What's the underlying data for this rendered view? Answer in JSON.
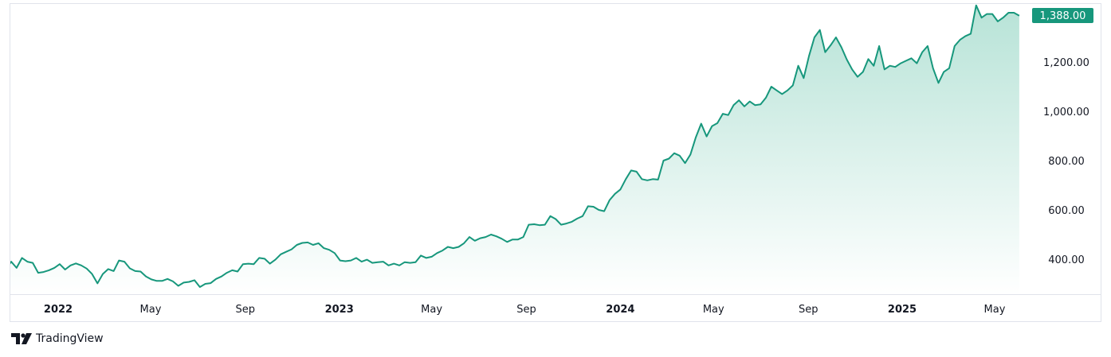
{
  "brand": {
    "name": "TradingView"
  },
  "colors": {
    "line": "#17977c",
    "area_top": "#b7e3d7",
    "area_bottom": "#ffffff",
    "badge": "#17977c",
    "border": "#e0e3eb"
  },
  "chart_data": {
    "type": "area",
    "title": "",
    "xlabel": "",
    "ylabel": "",
    "last_price_label": "1,388.00",
    "ylim": [
      290,
      1400
    ],
    "y_ticks": [
      {
        "value": 400,
        "label": "400.00"
      },
      {
        "value": 600,
        "label": "600.00"
      },
      {
        "value": 800,
        "label": "800.00"
      },
      {
        "value": 1000,
        "label": "1,000.00"
      },
      {
        "value": 1200,
        "label": "1,200.00"
      }
    ],
    "x_ticks": [
      {
        "date": "2022-01-01",
        "label": "2022",
        "bold": true
      },
      {
        "date": "2022-05-01",
        "label": "May",
        "bold": false
      },
      {
        "date": "2022-09-01",
        "label": "Sep",
        "bold": false
      },
      {
        "date": "2023-01-01",
        "label": "2023",
        "bold": true
      },
      {
        "date": "2023-05-01",
        "label": "May",
        "bold": false
      },
      {
        "date": "2023-09-01",
        "label": "Sep",
        "bold": false
      },
      {
        "date": "2024-01-01",
        "label": "2024",
        "bold": true
      },
      {
        "date": "2024-05-01",
        "label": "May",
        "bold": false
      },
      {
        "date": "2024-09-01",
        "label": "Sep",
        "bold": false
      },
      {
        "date": "2025-01-01",
        "label": "2025",
        "bold": true
      },
      {
        "date": "2025-05-01",
        "label": "May",
        "bold": false
      }
    ],
    "series": [
      {
        "x": [
          "2021-10-26",
          "2021-11-01",
          "2021-11-08",
          "2021-11-15",
          "2021-11-22",
          "2021-11-29",
          "2021-12-06",
          "2021-12-13",
          "2021-12-20",
          "2021-12-27",
          "2022-01-03",
          "2022-01-10",
          "2022-01-17",
          "2022-01-24",
          "2022-01-31",
          "2022-02-07",
          "2022-02-14",
          "2022-02-21",
          "2022-02-28",
          "2022-03-07",
          "2022-03-14",
          "2022-03-21",
          "2022-03-28",
          "2022-04-04",
          "2022-04-11",
          "2022-04-18",
          "2022-04-25",
          "2022-05-02",
          "2022-05-09",
          "2022-05-16",
          "2022-05-23",
          "2022-05-30",
          "2022-06-06",
          "2022-06-13",
          "2022-06-20",
          "2022-06-27",
          "2022-07-04",
          "2022-07-11",
          "2022-07-18",
          "2022-07-25",
          "2022-08-01",
          "2022-08-08",
          "2022-08-15",
          "2022-08-22",
          "2022-08-29",
          "2022-09-05",
          "2022-09-12",
          "2022-09-19",
          "2022-09-26",
          "2022-10-03",
          "2022-10-10",
          "2022-10-17",
          "2022-10-24",
          "2022-10-31",
          "2022-11-07",
          "2022-11-14",
          "2022-11-21",
          "2022-11-28",
          "2022-12-05",
          "2022-12-12",
          "2022-12-19",
          "2022-12-26",
          "2023-01-02",
          "2023-01-09",
          "2023-01-16",
          "2023-01-23",
          "2023-01-30",
          "2023-02-06",
          "2023-02-13",
          "2023-02-20",
          "2023-02-27",
          "2023-03-06",
          "2023-03-13",
          "2023-03-20",
          "2023-03-27",
          "2023-04-03",
          "2023-04-10",
          "2023-04-17",
          "2023-04-24",
          "2023-05-01",
          "2023-05-08",
          "2023-05-15",
          "2023-05-22",
          "2023-05-29",
          "2023-06-05",
          "2023-06-12",
          "2023-06-19",
          "2023-06-26",
          "2023-07-03",
          "2023-07-10",
          "2023-07-17",
          "2023-07-24",
          "2023-07-31",
          "2023-08-07",
          "2023-08-14",
          "2023-08-21",
          "2023-08-28",
          "2023-09-04",
          "2023-09-11",
          "2023-09-18",
          "2023-09-25",
          "2023-10-02",
          "2023-10-09",
          "2023-10-16",
          "2023-10-23",
          "2023-10-30",
          "2023-11-06",
          "2023-11-13",
          "2023-11-20",
          "2023-11-27",
          "2023-12-04",
          "2023-12-11",
          "2023-12-18",
          "2023-12-25",
          "2024-01-01",
          "2024-01-08",
          "2024-01-15",
          "2024-01-22",
          "2024-01-29",
          "2024-02-05",
          "2024-02-12",
          "2024-02-19",
          "2024-02-26",
          "2024-03-04",
          "2024-03-11",
          "2024-03-18",
          "2024-03-25",
          "2024-04-01",
          "2024-04-08",
          "2024-04-15",
          "2024-04-22",
          "2024-04-29",
          "2024-05-06",
          "2024-05-13",
          "2024-05-20",
          "2024-05-27",
          "2024-06-03",
          "2024-06-10",
          "2024-06-17",
          "2024-06-24",
          "2024-07-01",
          "2024-07-08",
          "2024-07-15",
          "2024-07-22",
          "2024-07-29",
          "2024-08-05",
          "2024-08-12",
          "2024-08-19",
          "2024-08-26",
          "2024-09-02",
          "2024-09-09",
          "2024-09-16",
          "2024-09-23",
          "2024-09-30",
          "2024-10-07",
          "2024-10-14",
          "2024-10-21",
          "2024-10-28",
          "2024-11-04",
          "2024-11-11",
          "2024-11-18",
          "2024-11-25",
          "2024-12-02",
          "2024-12-09",
          "2024-12-16",
          "2024-12-23",
          "2024-12-30",
          "2025-01-06",
          "2025-01-13",
          "2025-01-20",
          "2025-01-27",
          "2025-02-03",
          "2025-02-10",
          "2025-02-17",
          "2025-02-24",
          "2025-03-03",
          "2025-03-10",
          "2025-03-17",
          "2025-03-24",
          "2025-03-31",
          "2025-04-07",
          "2025-04-14",
          "2025-04-21",
          "2025-04-28",
          "2025-05-05",
          "2025-05-12",
          "2025-05-19",
          "2025-05-26",
          "2025-06-02"
        ],
        "values": [
          362,
          390,
          365,
          405,
          390,
          385,
          345,
          348,
          355,
          365,
          380,
          358,
          375,
          383,
          375,
          362,
          340,
          302,
          340,
          360,
          352,
          395,
          390,
          363,
          352,
          350,
          330,
          318,
          312,
          312,
          320,
          310,
          292,
          305,
          308,
          315,
          287,
          300,
          303,
          320,
          330,
          345,
          355,
          350,
          380,
          382,
          380,
          405,
          402,
          382,
          398,
          420,
          430,
          440,
          458,
          466,
          468,
          458,
          465,
          445,
          438,
          425,
          395,
          392,
          395,
          405,
          390,
          398,
          385,
          388,
          390,
          375,
          382,
          375,
          388,
          385,
          388,
          415,
          405,
          410,
          425,
          435,
          450,
          445,
          450,
          465,
          490,
          475,
          485,
          490,
          500,
          493,
          483,
          470,
          480,
          480,
          490,
          540,
          542,
          538,
          540,
          575,
          563,
          540,
          545,
          552,
          565,
          575,
          615,
          613,
          600,
          595,
          640,
          665,
          683,
          725,
          760,
          755,
          725,
          720,
          725,
          723,
          800,
          808,
          830,
          820,
          790,
          825,
          895,
          950,
          898,
          940,
          952,
          990,
          985,
          1025,
          1045,
          1020,
          1040,
          1025,
          1028,
          1055,
          1100,
          1085,
          1070,
          1085,
          1105,
          1185,
          1135,
          1225,
          1300,
          1330,
          1240,
          1268,
          1300,
          1260,
          1210,
          1170,
          1140,
          1160,
          1212,
          1185,
          1265,
          1170,
          1185,
          1180,
          1195,
          1205,
          1215,
          1195,
          1240,
          1265,
          1175,
          1115,
          1160,
          1175,
          1265,
          1290,
          1305,
          1315,
          1430,
          1380,
          1395,
          1395,
          1365,
          1380,
          1400,
          1400,
          1388
        ]
      }
    ]
  }
}
